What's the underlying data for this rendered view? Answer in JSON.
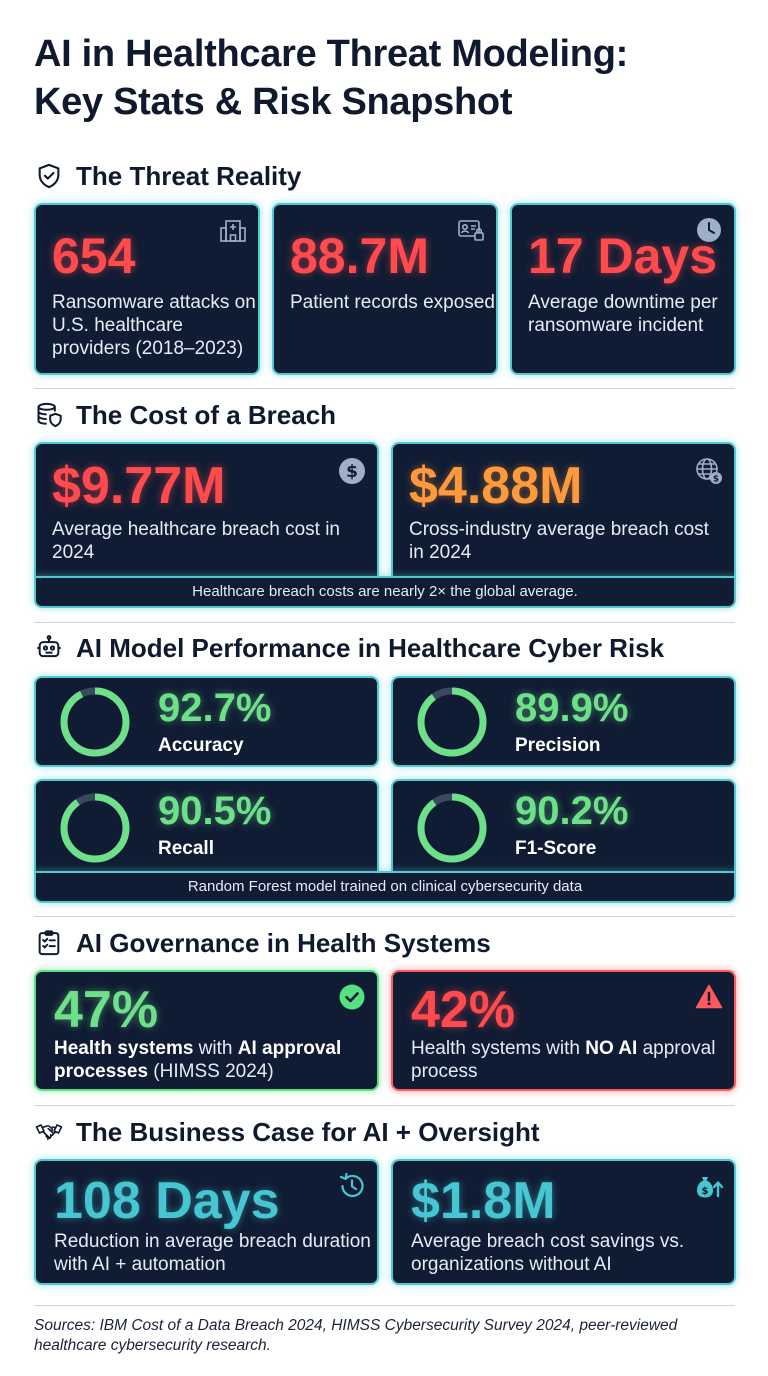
{
  "title": {
    "line1": "AI in Healthcare Threat Modeling:",
    "line2": "Key Stats & Risk Snapshot"
  },
  "sections": {
    "threat": {
      "heading": "The Threat Reality",
      "icon": "shield-check-icon",
      "cards": [
        {
          "value": "654",
          "desc": "Ransomware attacks on U.S. healthcare providers (2018–2023)",
          "icon": "hospital-icon"
        },
        {
          "value": "88.7M",
          "desc": "Patient records exposed",
          "icon": "locked-id-card-icon"
        },
        {
          "value": "17 Days",
          "desc": "Average downtime per ransomware incident",
          "icon": "clock-icon"
        }
      ]
    },
    "cost": {
      "heading": "The Cost of a Breach",
      "icon": "database-shield-icon",
      "cards": [
        {
          "value": "$9.77M",
          "desc": "Average healthcare breach cost in 2024",
          "icon": "dollar-coin-icon"
        },
        {
          "value": "$4.88M",
          "desc": "Cross-industry average breach cost in 2024",
          "icon": "globe-dollar-icon"
        }
      ],
      "footnote": "Healthcare breach costs are nearly 2× the global average."
    },
    "performance": {
      "heading": "AI Model Performance in Healthcare Cyber Risk",
      "icon": "robot-icon",
      "metrics": [
        {
          "value": "92.7%",
          "label": "Accuracy",
          "fraction": 0.927
        },
        {
          "value": "89.9%",
          "label": "Precision",
          "fraction": 0.899
        },
        {
          "value": "90.5%",
          "label": "Recall",
          "fraction": 0.905
        },
        {
          "value": "90.2%",
          "label": "F1-Score",
          "fraction": 0.902
        }
      ],
      "footnote": "Random Forest model trained on clinical cybersecurity data"
    },
    "governance": {
      "heading": "AI Governance in Health Systems",
      "icon": "checklist-icon",
      "cards": [
        {
          "value": "47%",
          "desc_pre_bold": "Health systems",
          "desc_mid": " with ",
          "desc_bold2": "AI approval processes",
          "desc_post": " (HIMSS 2024)",
          "icon": "check-circle-icon"
        },
        {
          "value": "42%",
          "desc_pre": "Health systems with ",
          "desc_bold": "NO AI",
          "desc_post": " approval process",
          "icon": "warning-icon"
        }
      ]
    },
    "business": {
      "heading": "The Business Case for AI + Oversight",
      "icon": "handshake-icon",
      "cards": [
        {
          "value": "108 Days",
          "desc": "Reduction in average breach duration with AI + automation",
          "icon": "history-clock-icon"
        },
        {
          "value": "$1.8M",
          "desc": "Average breach cost savings vs. organizations without AI",
          "icon": "money-bag-up-icon"
        }
      ]
    }
  },
  "sources": "Sources: IBM Cost of a Data Breach 2024, HIMSS Cybersecurity Survey 2024, peer-reviewed healthcare cybersecurity research.",
  "colors": {
    "card_bg": "#101c33",
    "teal": "#4fc9cf",
    "red": "#ff4b4e",
    "orange": "#ff9a3c",
    "green": "#6fe08a",
    "donut_track": "#3a4a5e"
  }
}
